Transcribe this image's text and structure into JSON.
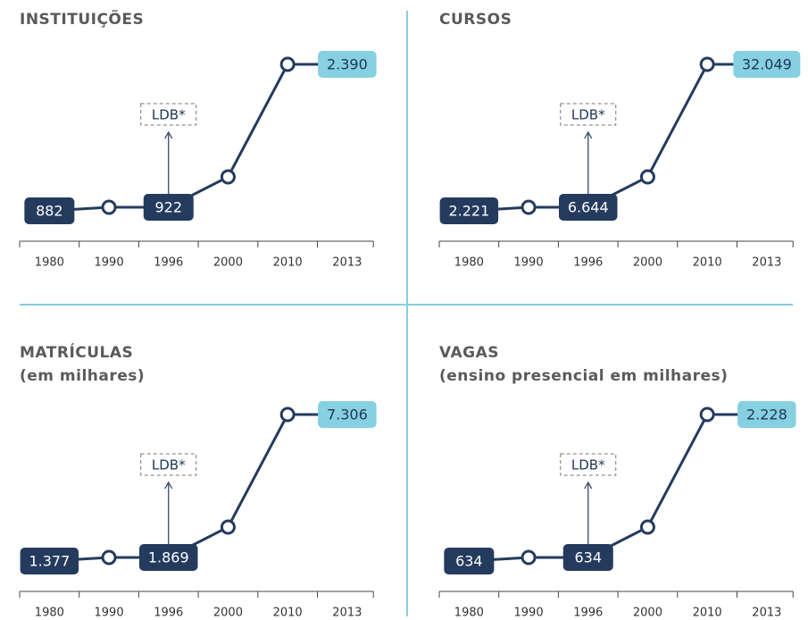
{
  "chart_data": [
    {
      "type": "line",
      "title": "INSTITUIÇÕES",
      "categories": [
        "1980",
        "1990",
        "1996",
        "2000",
        "2010",
        "2013"
      ],
      "values": [
        882,
        null,
        922,
        null,
        null,
        2390
      ],
      "value_labels": [
        "882",
        null,
        "922",
        null,
        null,
        "2.390"
      ],
      "annotation": "LDB*"
    },
    {
      "type": "line",
      "title": "CURSOS",
      "categories": [
        "1980",
        "1990",
        "1996",
        "2000",
        "2010",
        "2013"
      ],
      "values": [
        2221,
        null,
        6644,
        null,
        null,
        32049
      ],
      "value_labels": [
        "2.221",
        null,
        "6.644",
        null,
        null,
        "32.049"
      ],
      "annotation": "LDB*"
    },
    {
      "type": "line",
      "title": "MATRÍCULAS",
      "subtitle": "(em milhares)",
      "categories": [
        "1980",
        "1990",
        "1996",
        "2000",
        "2010",
        "2013"
      ],
      "values": [
        1377,
        null,
        1869,
        null,
        null,
        7306
      ],
      "value_labels": [
        "1.377",
        null,
        "1.869",
        null,
        null,
        "7.306"
      ],
      "annotation": "LDB*"
    },
    {
      "type": "line",
      "title": "VAGAS",
      "subtitle": "(ensino presencial em milhares)",
      "categories": [
        "1980",
        "1990",
        "1996",
        "2000",
        "2010",
        "2013"
      ],
      "values": [
        634,
        null,
        634,
        null,
        null,
        2228
      ],
      "value_labels": [
        "634",
        null,
        "634",
        null,
        null,
        "2.228"
      ],
      "annotation": "LDB*"
    }
  ]
}
